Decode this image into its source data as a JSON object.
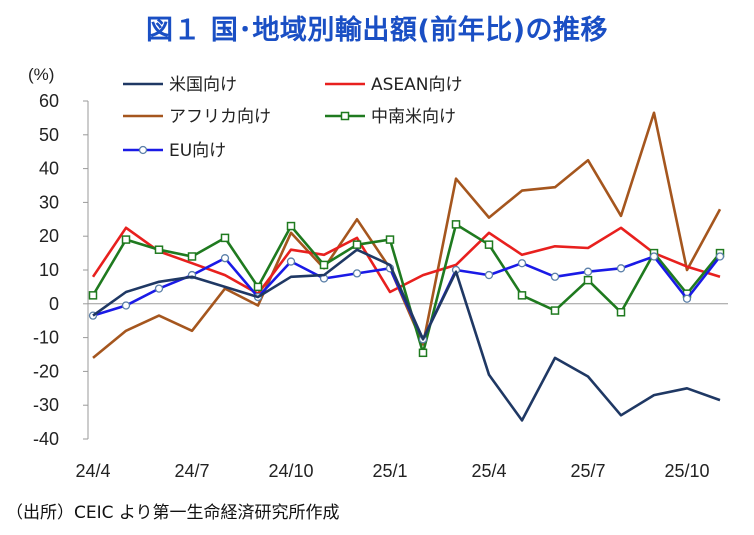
{
  "title": "図１ 国･地域別輸出額(前年比)の推移",
  "source": "（出所）CEIC より第一生命経済研究所作成",
  "chart_data": {
    "type": "line",
    "title": "図１ 国･地域別輸出額(前年比)の推移",
    "ylabel": "(%)",
    "xlabel": "",
    "ylim": [
      -40,
      60
    ],
    "yticks": [
      60,
      50,
      40,
      30,
      20,
      10,
      0,
      -10,
      -20,
      -30,
      -40
    ],
    "x": [
      "24/4",
      "24/5",
      "24/6",
      "24/7",
      "24/8",
      "24/9",
      "24/10",
      "24/11",
      "24/12",
      "25/1",
      "25/2",
      "25/3",
      "25/4",
      "25/5",
      "25/6",
      "25/7",
      "25/8",
      "25/9",
      "25/10",
      "25/11"
    ],
    "xtick_labels": [
      {
        "index": 0,
        "label": "24/4"
      },
      {
        "index": 3,
        "label": "24/7"
      },
      {
        "index": 6,
        "label": "24/10"
      },
      {
        "index": 9,
        "label": "25/1"
      },
      {
        "index": 12,
        "label": "25/4"
      },
      {
        "index": 15,
        "label": "25/7"
      },
      {
        "index": 18,
        "label": "25/10"
      }
    ],
    "grid": false,
    "legend_position": "top-left",
    "series": [
      {
        "name": "米国向け",
        "color": "#1f3864",
        "marker": "none",
        "values": [
          -3.5,
          3.5,
          6.5,
          8.0,
          5.0,
          2.0,
          8.0,
          8.5,
          16.0,
          11.5,
          -10.5,
          9.5,
          -21.0,
          -34.5,
          -16.0,
          -21.5,
          -33.0,
          -27.0,
          -25.0,
          -28.5
        ]
      },
      {
        "name": "ASEAN向け",
        "color": "#e8201e",
        "marker": "none",
        "values": [
          8.0,
          22.5,
          15.5,
          12.0,
          8.5,
          3.0,
          16.0,
          14.5,
          19.5,
          3.5,
          8.5,
          11.5,
          21.0,
          14.5,
          17.0,
          16.5,
          22.5,
          15.0,
          11.0,
          8.0
        ]
      },
      {
        "name": "アフリカ向け",
        "color": "#a5561e",
        "marker": "none",
        "values": [
          -16.0,
          -8.0,
          -3.5,
          -8.0,
          4.5,
          -0.5,
          21.0,
          10.5,
          25.0,
          10.5,
          -12.0,
          37.0,
          25.5,
          33.5,
          34.5,
          42.5,
          26.0,
          56.5,
          10.0,
          28.0
        ]
      },
      {
        "name": "中南米向け",
        "color": "#1f7a1f",
        "marker": "square",
        "values": [
          2.5,
          19.0,
          16.0,
          14.0,
          19.5,
          5.0,
          23.0,
          11.5,
          17.5,
          19.0,
          -14.5,
          23.5,
          17.5,
          2.5,
          -2.0,
          7.0,
          -2.5,
          15.0,
          3.0,
          15.0
        ]
      },
      {
        "name": "EU向け",
        "color": "#1a1ae6",
        "marker": "circle",
        "values": [
          -3.5,
          -0.5,
          4.5,
          8.5,
          13.5,
          2.0,
          12.5,
          7.5,
          9.0,
          10.5,
          -10.5,
          10.0,
          8.5,
          12.0,
          8.0,
          9.5,
          10.5,
          14.0,
          1.5,
          14.0
        ]
      }
    ]
  }
}
